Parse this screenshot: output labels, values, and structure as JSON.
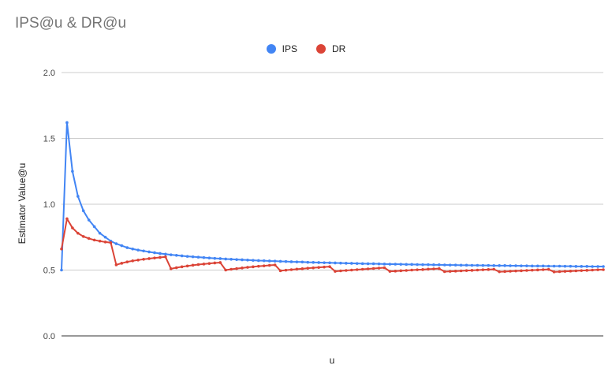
{
  "chart_data": {
    "type": "line",
    "title": "IPS@u & DR@u",
    "xlabel": "u",
    "ylabel": "Estimator Value@u",
    "ylim": [
      0,
      2
    ],
    "yticks": [
      "0.0",
      "0.5",
      "1.0",
      "1.5",
      "2.0"
    ],
    "grid": true,
    "legend_position": "top",
    "n_points": 100,
    "series": [
      {
        "name": "IPS",
        "color": "#4285f4",
        "values": [
          0.5,
          1.62,
          1.25,
          1.06,
          0.95,
          0.88,
          0.83,
          0.78,
          0.75,
          0.72,
          0.7,
          0.685,
          0.67,
          0.66,
          0.652,
          0.645,
          0.638,
          0.632,
          0.626,
          0.621,
          0.616,
          0.612,
          0.608,
          0.604,
          0.601,
          0.598,
          0.595,
          0.592,
          0.589,
          0.587,
          0.584,
          0.582,
          0.58,
          0.578,
          0.576,
          0.574,
          0.572,
          0.571,
          0.569,
          0.568,
          0.566,
          0.565,
          0.563,
          0.562,
          0.561,
          0.559,
          0.558,
          0.557,
          0.556,
          0.555,
          0.554,
          0.553,
          0.552,
          0.551,
          0.55,
          0.549,
          0.548,
          0.548,
          0.547,
          0.546,
          0.545,
          0.545,
          0.544,
          0.543,
          0.543,
          0.542,
          0.541,
          0.541,
          0.54,
          0.54,
          0.539,
          0.538,
          0.538,
          0.537,
          0.537,
          0.536,
          0.536,
          0.535,
          0.535,
          0.534,
          0.534,
          0.534,
          0.533,
          0.533,
          0.532,
          0.532,
          0.531,
          0.531,
          0.531,
          0.53,
          0.53,
          0.53,
          0.529,
          0.529,
          0.528,
          0.528,
          0.528,
          0.527,
          0.527,
          0.527
        ]
      },
      {
        "name": "DR",
        "color": "#db4437",
        "values": [
          0.66,
          0.89,
          0.82,
          0.78,
          0.755,
          0.74,
          0.728,
          0.72,
          0.713,
          0.708,
          0.54,
          0.552,
          0.562,
          0.57,
          0.576,
          0.582,
          0.587,
          0.592,
          0.596,
          0.6,
          0.51,
          0.518,
          0.525,
          0.531,
          0.537,
          0.542,
          0.546,
          0.55,
          0.554,
          0.557,
          0.5,
          0.506,
          0.511,
          0.516,
          0.521,
          0.525,
          0.529,
          0.532,
          0.536,
          0.539,
          0.495,
          0.499,
          0.503,
          0.507,
          0.51,
          0.514,
          0.517,
          0.52,
          0.523,
          0.526,
          0.49,
          0.494,
          0.497,
          0.5,
          0.503,
          0.506,
          0.509,
          0.512,
          0.515,
          0.518,
          0.49,
          0.492,
          0.495,
          0.497,
          0.5,
          0.502,
          0.504,
          0.507,
          0.509,
          0.511,
          0.488,
          0.49,
          0.492,
          0.494,
          0.496,
          0.498,
          0.5,
          0.502,
          0.504,
          0.506,
          0.487,
          0.489,
          0.491,
          0.493,
          0.495,
          0.497,
          0.499,
          0.501,
          0.503,
          0.505,
          0.486,
          0.488,
          0.49,
          0.492,
          0.494,
          0.496,
          0.498,
          0.5,
          0.502,
          0.503
        ]
      }
    ]
  }
}
